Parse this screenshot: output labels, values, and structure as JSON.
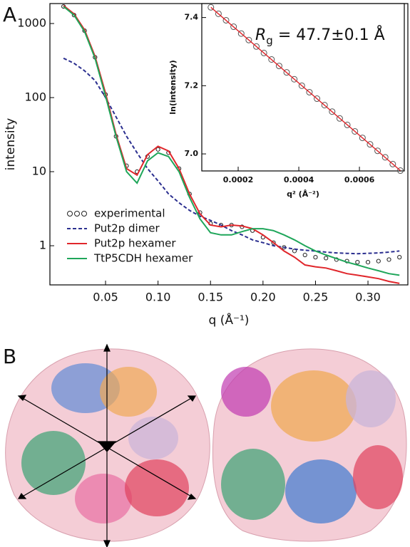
{
  "panel_labels": [
    "A",
    "B"
  ],
  "chart_data": [
    {
      "type": "line",
      "yscale": "log",
      "legend": "lower left",
      "xlabel": "q (Å⁻¹)",
      "ylabel": "intensity",
      "xlim": [
        -0.003,
        0.338
      ],
      "ylim": [
        0.296,
        1860
      ],
      "xticks": [
        0.05,
        {
          "value": 0.1,
          "label": "0.10"
        },
        0.15,
        {
          "value": 0.2,
          "label": "0.20"
        },
        0.25,
        {
          "value": 0.3,
          "label": "0.30"
        }
      ],
      "yticks": [
        1,
        10,
        100,
        1000
      ],
      "x": [
        0.01,
        0.02,
        0.03,
        0.04,
        0.05,
        0.06,
        0.07,
        0.08,
        0.09,
        0.1,
        0.11,
        0.12,
        0.13,
        0.14,
        0.15,
        0.16,
        0.17,
        0.18,
        0.19,
        0.2,
        0.21,
        0.22,
        0.23,
        0.24,
        0.25,
        0.26,
        0.27,
        0.28,
        0.29,
        0.3,
        0.31,
        0.32,
        0.33
      ],
      "series": [
        {
          "name": "experimental",
          "type": "scatter",
          "color": "#222222",
          "values": [
            1700,
            1300,
            800,
            350,
            110,
            30,
            12,
            10,
            16,
            20,
            18,
            11,
            5,
            2.8,
            2.0,
            1.9,
            1.9,
            1.8,
            1.6,
            1.3,
            1.1,
            0.95,
            0.85,
            0.75,
            0.7,
            0.68,
            0.65,
            0.62,
            0.6,
            0.6,
            0.62,
            0.65,
            0.7
          ]
        },
        {
          "name": "Put2p dimer",
          "type": "line",
          "line_style": "dashed",
          "color": "#2b2f8f",
          "values": [
            340,
            290,
            230,
            170,
            100,
            55,
            30,
            18,
            11,
            7.5,
            5,
            3.8,
            3,
            2.5,
            2.2,
            1.9,
            1.6,
            1.4,
            1.2,
            1.1,
            1.0,
            0.95,
            0.9,
            0.87,
            0.85,
            0.82,
            0.8,
            0.79,
            0.78,
            0.79,
            0.8,
            0.82,
            0.85
          ]
        },
        {
          "name": "Put2p hexamer",
          "type": "line",
          "line_style": "solid",
          "color": "#e0262b",
          "values": [
            1750,
            1350,
            820,
            360,
            115,
            32,
            11,
            9,
            17,
            22,
            19,
            11,
            5,
            2.7,
            1.9,
            1.8,
            1.9,
            1.85,
            1.7,
            1.4,
            1.1,
            0.85,
            0.7,
            0.55,
            0.52,
            0.5,
            0.46,
            0.42,
            0.4,
            0.38,
            0.36,
            0.33,
            0.31
          ]
        },
        {
          "name": "TtP5CDH hexamer",
          "type": "line",
          "line_style": "solid",
          "color": "#1fa65a",
          "values": [
            1700,
            1300,
            780,
            340,
            105,
            30,
            10,
            7,
            14,
            18,
            16,
            10,
            4.5,
            2.3,
            1.5,
            1.4,
            1.4,
            1.55,
            1.7,
            1.7,
            1.6,
            1.4,
            1.2,
            1.0,
            0.85,
            0.75,
            0.67,
            0.6,
            0.55,
            0.5,
            0.46,
            0.42,
            0.4
          ]
        }
      ]
    },
    {
      "type": "line",
      "yscale": "linear",
      "xlabel": "q² (Å⁻²)",
      "ylabel": "ln(intensity)",
      "annotation": {
        "symbol": "R",
        "subscript": "g",
        "text": " = 47.7±0.1 Å"
      },
      "xlim": [
        8e-05,
        0.000748
      ],
      "ylim": [
        6.95,
        7.441
      ],
      "xticks": [
        0.0002,
        0.0004,
        0.0006
      ],
      "yticks": [
        {
          "value": 7,
          "label": "7.0"
        },
        7.2,
        7.4
      ],
      "x": [
        0.00011,
        0.000135,
        0.00016,
        0.000185,
        0.00021,
        0.000235,
        0.00026,
        0.000285,
        0.00031,
        0.000335,
        0.00036,
        0.000385,
        0.00041,
        0.000435,
        0.00046,
        0.000485,
        0.00051,
        0.000535,
        0.00056,
        0.000585,
        0.00061,
        0.000635,
        0.00066,
        0.000685,
        0.00071,
        0.000735
      ],
      "series": [
        {
          "type": "scatter",
          "color": "#555555",
          "values": [
            7.43,
            7.411,
            7.392,
            7.373,
            7.353,
            7.334,
            7.315,
            7.296,
            7.277,
            7.258,
            7.239,
            7.219,
            7.2,
            7.181,
            7.162,
            7.143,
            7.124,
            7.104,
            7.085,
            7.066,
            7.047,
            7.028,
            7.009,
            6.99,
            6.97,
            6.951
          ]
        },
        {
          "type": "line",
          "line_style": "solid",
          "color": "#e0262b",
          "x": [
            0.00011,
            0.000735
          ],
          "values": [
            7.43,
            6.951
          ]
        }
      ]
    }
  ]
}
